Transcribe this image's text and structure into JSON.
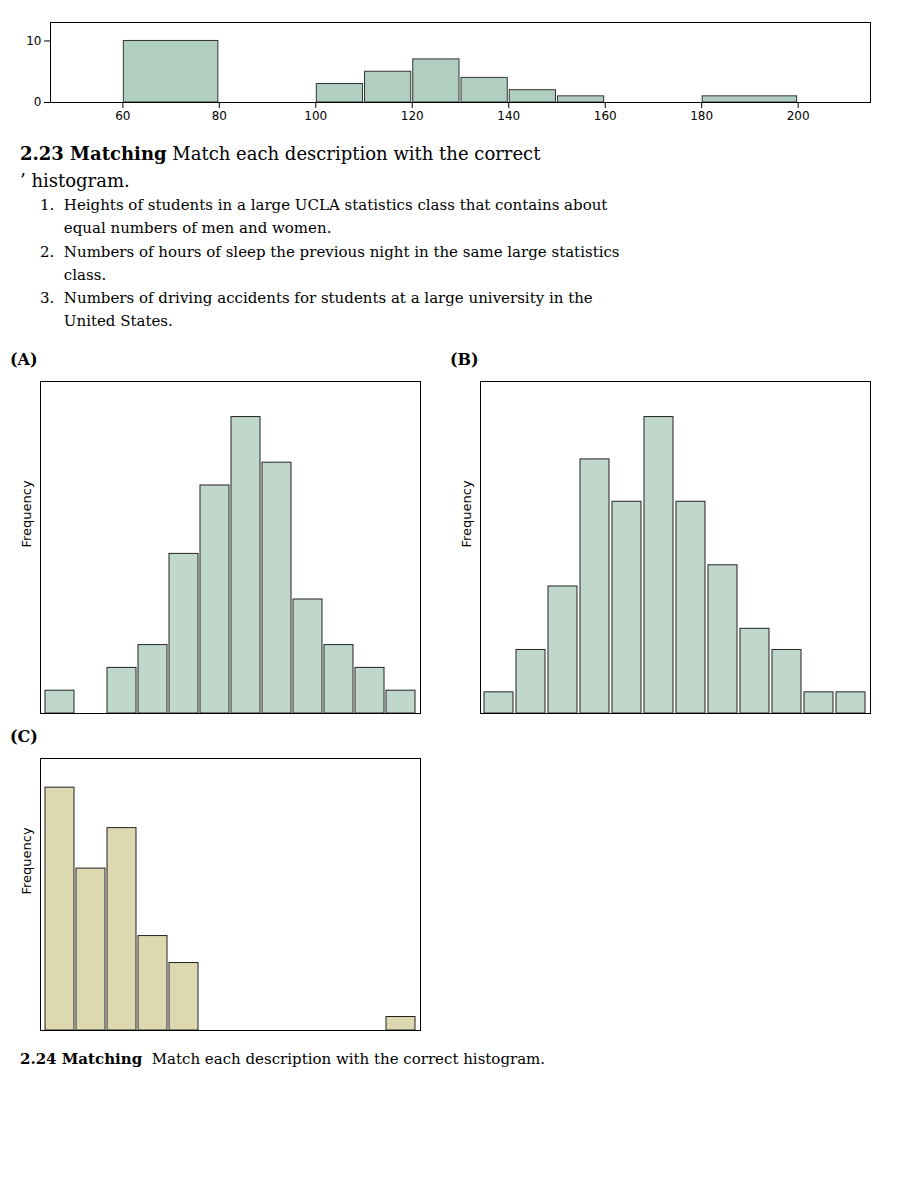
{
  "chart_data": [
    {
      "type": "histogram",
      "bins": [
        60,
        80,
        100,
        110,
        120,
        130,
        140,
        150,
        160,
        170,
        180,
        200,
        210
      ],
      "values": [
        10,
        0,
        3,
        5,
        7,
        4,
        2,
        1,
        0,
        0,
        1,
        0
      ],
      "color": "#b0cfc0",
      "xlim": [
        45,
        215
      ],
      "xticks": [
        60,
        80,
        100,
        120,
        140,
        160,
        180,
        200
      ],
      "ylim": [
        0,
        13
      ],
      "yticks": [
        0,
        10
      ]
    },
    {
      "type": "bar",
      "title": "(A)",
      "ylabel": "Frequency",
      "annotations": [
        "2.23 Matching",
        " Match each description with the correct",
        "’ histogram.",
        "1.  Heights of students in a large UCLA statistics class that contains about",
        "     equal numbers of men and women.",
        "2.  Numbers of hours of sleep the previous night in the same large statistics",
        "     class.",
        "3.  Numbers of driving accidents for students at a large university in the",
        "     United States."
      ],
      "categories": [
        null,
        null,
        null,
        null,
        null,
        null,
        null,
        null,
        null,
        null,
        null,
        null
      ],
      "values": [
        1,
        0,
        2,
        3,
        7,
        10,
        13,
        11,
        5,
        3,
        2,
        1
      ],
      "color": "#c0d8cc",
      "ylim": [
        0,
        14.56
      ],
      "tick_labels": false
    },
    {
      "type": "bar",
      "title": "(B)",
      "ylabel": "Frequency",
      "categories": [
        null,
        null,
        null,
        null,
        null,
        null,
        null,
        null,
        null,
        null,
        null,
        null
      ],
      "values": [
        1,
        3,
        6,
        12,
        10,
        14,
        10,
        7,
        4,
        3,
        1,
        1
      ],
      "color": "#c0d8cc",
      "ylim": [
        0,
        15.68
      ],
      "tick_labels": false
    },
    {
      "type": "bar",
      "title": "(C)",
      "ylabel": "Frequency",
      "annotations": [
        "2.24 Matching",
        "  Match each description with the correct histogram."
      ],
      "categories": [
        null,
        null,
        null,
        null,
        null,
        null,
        null,
        null,
        null,
        null,
        null,
        null
      ],
      "values": [
        18,
        12,
        15,
        7,
        5,
        0,
        0,
        0,
        0,
        0,
        0,
        1
      ],
      "color": "#ddd8b0",
      "ylim": [
        0,
        20.16
      ],
      "tick_labels": false
    }
  ]
}
